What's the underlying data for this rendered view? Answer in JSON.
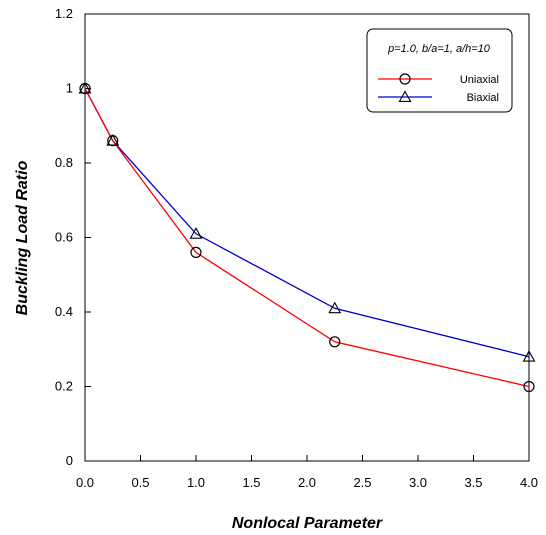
{
  "chart_data": {
    "type": "line",
    "xlabel": "Nonlocal Parameter",
    "ylabel": "Buckling  Load  Ratio",
    "xlim": [
      0.0,
      4.0
    ],
    "ylim": [
      0,
      1.2
    ],
    "x_ticks": [
      "0.0",
      "0.5",
      "1.0",
      "1.5",
      "2.0",
      "2.5",
      "3.0",
      "3.5",
      "4.0"
    ],
    "y_ticks": [
      "0",
      "0.2",
      "0.4",
      "0.6",
      "0.8",
      "1",
      "1.2"
    ],
    "grid": false,
    "legend": {
      "title": "p=1.0, b/a=1, a/h=10",
      "placement": "top-right"
    },
    "series": [
      {
        "name": "Uniaxial",
        "color": "#ff0000",
        "marker": "circle",
        "x": [
          0.0,
          0.25,
          1.0,
          2.25,
          4.0
        ],
        "y": [
          1.0,
          0.86,
          0.56,
          0.32,
          0.2
        ]
      },
      {
        "name": "Biaxial",
        "color": "#0000cc",
        "marker": "triangle",
        "x": [
          0.0,
          0.25,
          1.0,
          2.25,
          4.0
        ],
        "y": [
          1.0,
          0.86,
          0.61,
          0.41,
          0.28
        ]
      }
    ]
  }
}
